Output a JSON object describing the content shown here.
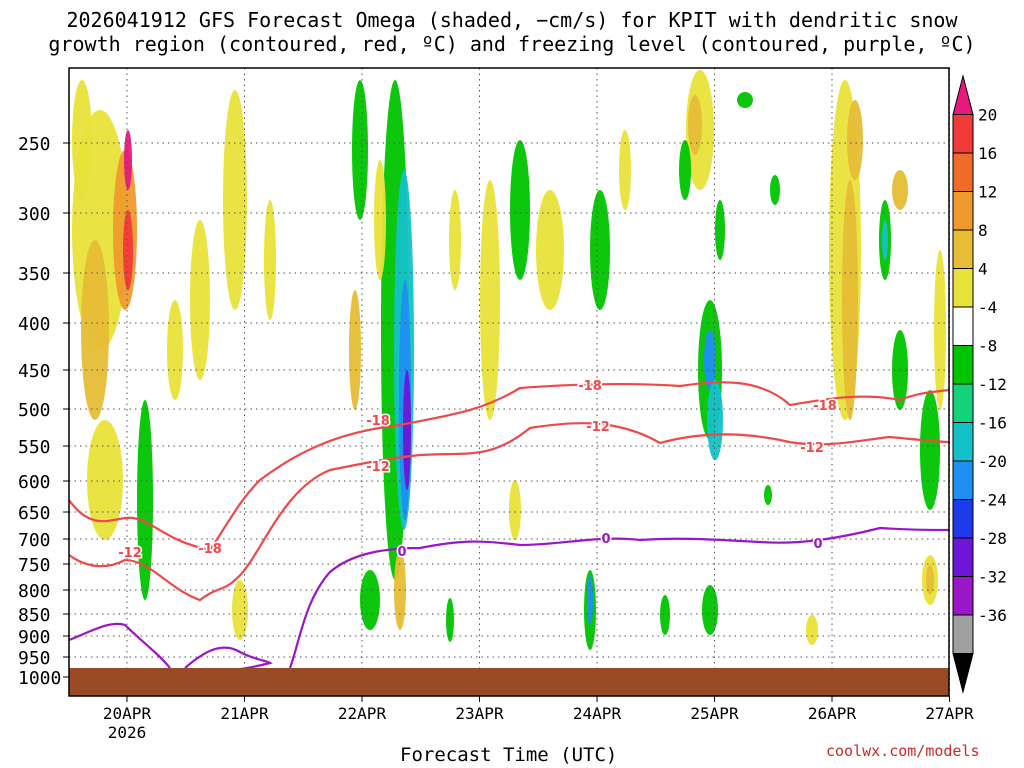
{
  "chart_data": {
    "type": "heatmap",
    "title_line1": "2026041912 GFS Forecast Omega (shaded, −cm/s) for KPIT with dendritic snow",
    "title_line2": "growth region (contoured, red, ºC) and freezing level (contoured, purple, ºC)",
    "xlabel": "Forecast Time (UTC)",
    "credit": "coolwx.com/models",
    "x_ticks": [
      "20APR",
      "21APR",
      "22APR",
      "23APR",
      "24APR",
      "25APR",
      "26APR",
      "27APR"
    ],
    "x_year": "2026",
    "y_ticks": [
      "250",
      "300",
      "350",
      "400",
      "450",
      "500",
      "550",
      "600",
      "650",
      "700",
      "750",
      "800",
      "850",
      "900",
      "950",
      "1000"
    ],
    "y_values": [
      250,
      300,
      350,
      400,
      450,
      500,
      550,
      600,
      650,
      700,
      750,
      800,
      850,
      900,
      950,
      1000
    ],
    "colorbar": {
      "labels": [
        "20",
        "16",
        "12",
        "8",
        "4",
        "-4",
        "-8",
        "-12",
        "-16",
        "-20",
        "-24",
        "-28",
        "-32",
        "-36"
      ],
      "colors": [
        "#e8197e",
        "#f23a3a",
        "#ef6b2a",
        "#ef9a2e",
        "#e7bd36",
        "#e9e23a",
        "#ffffff",
        "#00c400",
        "#14d27a",
        "#12c2c8",
        "#1f8ff2",
        "#1f3ae8",
        "#6b16d8",
        "#9b16c8",
        "#a0a0a0",
        "#000000"
      ]
    },
    "contours": {
      "red_labels": [
        "-12",
        "-18",
        "-18",
        "-12",
        "-18",
        "-12",
        "-18",
        "-12"
      ],
      "purple_labels": [
        "0",
        "0",
        "0"
      ],
      "red_color": "#f04848",
      "purple_color": "#9a16c8"
    },
    "ground_color": "#9a4a25"
  }
}
